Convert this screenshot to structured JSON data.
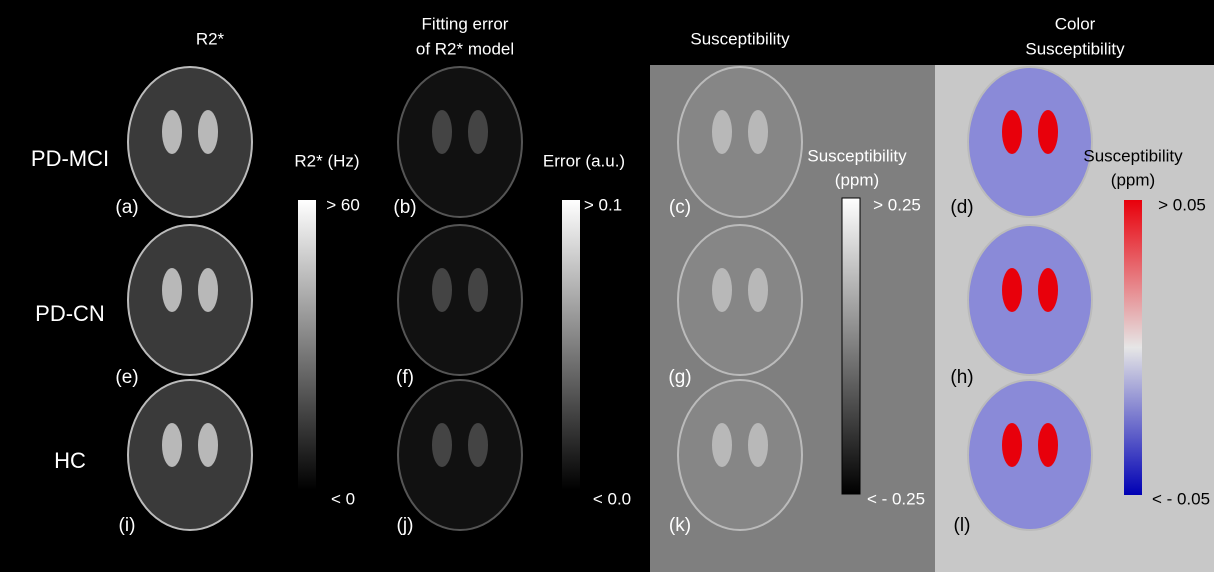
{
  "headers": [
    {
      "lines": [
        "R2*"
      ]
    },
    {
      "lines": [
        "Fitting error",
        "of R2* model"
      ]
    },
    {
      "lines": [
        "Susceptibility"
      ]
    },
    {
      "lines": [
        "Color",
        "Susceptibility"
      ]
    }
  ],
  "row_labels": [
    "PD-MCI",
    "PD-CN",
    "HC"
  ],
  "panel_labels": [
    "(a)",
    "(b)",
    "(c)",
    "(d)",
    "(e)",
    "(f)",
    "(g)",
    "(h)",
    "(i)",
    "(j)",
    "(k)",
    "(l)"
  ],
  "colorbars": [
    {
      "title": [
        "R2* (Hz)"
      ],
      "max_label": "> 60",
      "min_label": "< 0"
    },
    {
      "title": [
        "Error (a.u.)"
      ],
      "max_label": "> 0.1",
      "min_label": "< 0.0"
    },
    {
      "title": [
        "Susceptibility",
        "(ppm)"
      ],
      "max_label": "> 0.25",
      "min_label": "< - 0.25"
    },
    {
      "title": [
        "Susceptibility",
        "(ppm)"
      ],
      "max_label": "> 0.05",
      "min_label": "< - 0.05"
    }
  ]
}
